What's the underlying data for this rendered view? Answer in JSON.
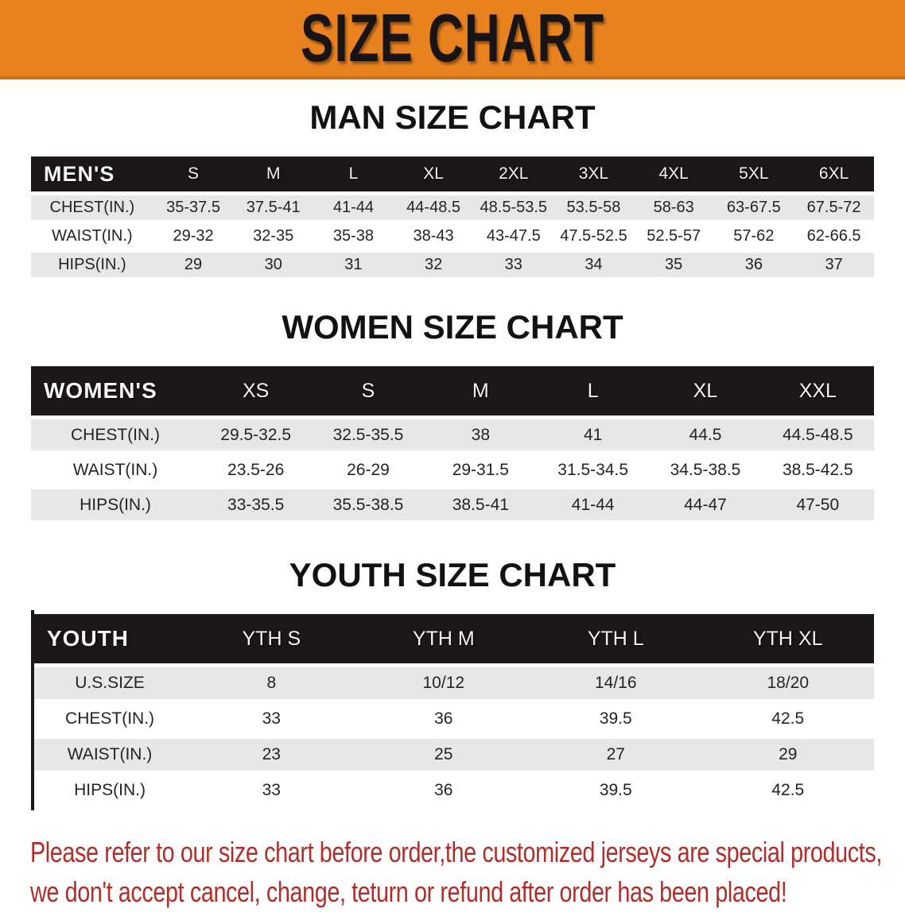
{
  "banner": {
    "title": "SIZE CHART",
    "background_color": "#E8821F",
    "text_color": "#181314"
  },
  "sections": [
    {
      "title": "MAN SIZE CHART",
      "table": {
        "header": [
          "MEN'S",
          "S",
          "M",
          "L",
          "XL",
          "2XL",
          "3XL",
          "4XL",
          "5XL",
          "6XL"
        ],
        "rows": [
          [
            "CHEST(IN.)",
            "35-37.5",
            "37.5-41",
            "41-44",
            "44-48.5",
            "48.5-53.5",
            "53.5-58",
            "58-63",
            "63-67.5",
            "67.5-72"
          ],
          [
            "WAIST(IN.)",
            "29-32",
            "32-35",
            "35-38",
            "38-43",
            "43-47.5",
            "47.5-52.5",
            "52.5-57",
            "57-62",
            "62-66.5"
          ],
          [
            "HIPS(IN.)",
            "29",
            "30",
            "31",
            "32",
            "33",
            "34",
            "35",
            "36",
            "37"
          ]
        ]
      }
    },
    {
      "title": "WOMEN SIZE CHART",
      "table": {
        "header": [
          "WOMEN'S",
          "XS",
          "S",
          "M",
          "L",
          "XL",
          "XXL"
        ],
        "rows": [
          [
            "CHEST(IN.)",
            "29.5-32.5",
            "32.5-35.5",
            "38",
            "41",
            "44.5",
            "44.5-48.5"
          ],
          [
            "WAIST(IN.)",
            "23.5-26",
            "26-29",
            "29-31.5",
            "31.5-34.5",
            "34.5-38.5",
            "38.5-42.5"
          ],
          [
            "HIPS(IN.)",
            "33-35.5",
            "35.5-38.5",
            "38.5-41",
            "41-44",
            "44-47",
            "47-50"
          ]
        ]
      }
    },
    {
      "title": "YOUTH SIZE CHART",
      "table": {
        "header": [
          "YOUTH",
          "YTH S",
          "YTH M",
          "YTH L",
          "YTH XL"
        ],
        "rows": [
          [
            "U.S.SIZE",
            "8",
            "10/12",
            "14/16",
            "18/20"
          ],
          [
            "CHEST(IN.)",
            "33",
            "36",
            "39.5",
            "42.5"
          ],
          [
            "WAIST(IN.)",
            "23",
            "25",
            "27",
            "29"
          ],
          [
            "HIPS(IN.)",
            "33",
            "36",
            "39.5",
            "42.5"
          ]
        ]
      }
    }
  ],
  "footer_note": {
    "line1": "Please refer to our size chart before order,the customized jerseys are special products,",
    "line2": "we don't accept cancel, change, teturn or refund after order has been placed!",
    "color": "#B02E2A"
  },
  "colors": {
    "table_header_bar": "#1B1617",
    "row_stripe": "#E7E7E7"
  }
}
